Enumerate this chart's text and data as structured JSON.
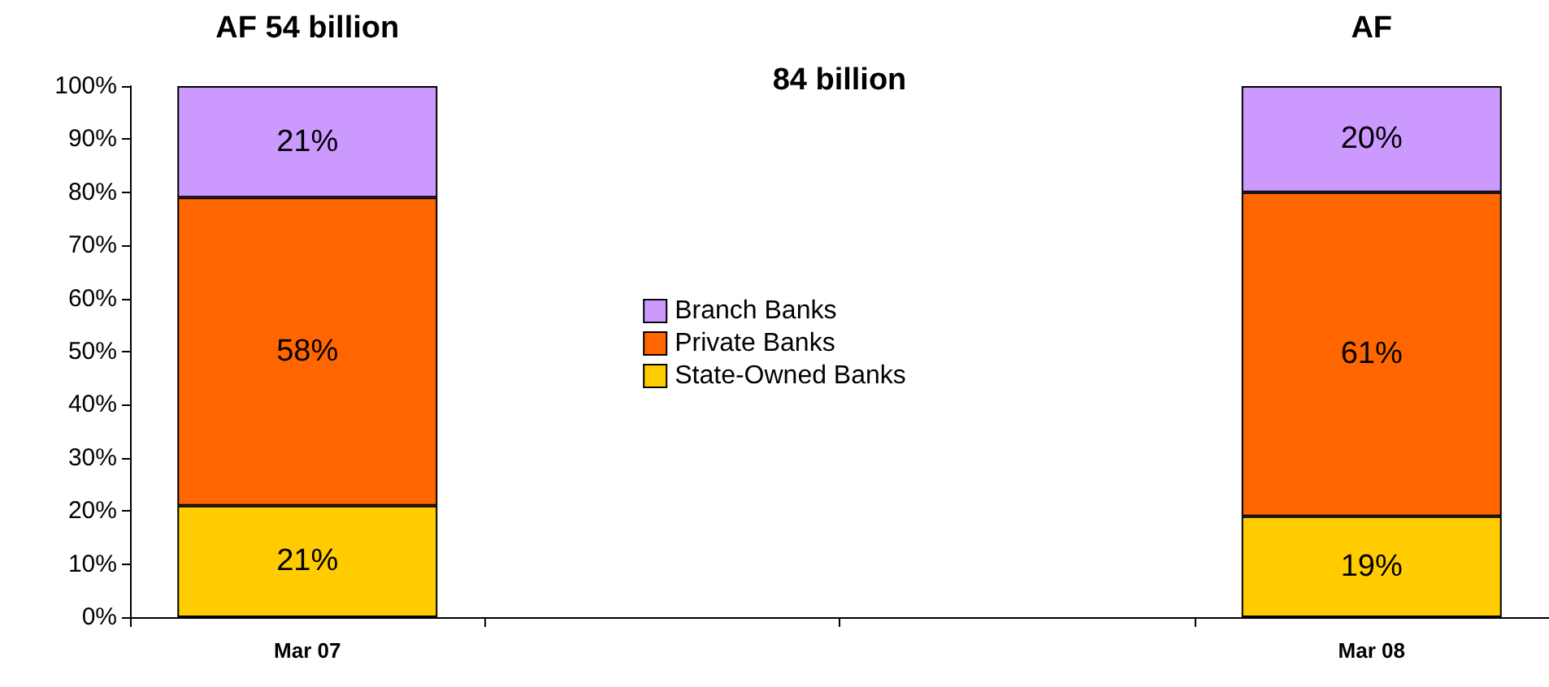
{
  "chart_data": {
    "type": "bar",
    "stacked": true,
    "categories": [
      "Mar 07",
      null,
      null,
      "Mar 08"
    ],
    "series": [
      {
        "name": "State-Owned Banks",
        "color": "#ffcc00",
        "values": [
          21,
          null,
          null,
          19
        ],
        "value_labels": [
          "21%",
          null,
          null,
          "19%"
        ]
      },
      {
        "name": "Private Banks",
        "color": "#ff6600",
        "values": [
          58,
          null,
          null,
          61
        ],
        "value_labels": [
          "58%",
          null,
          null,
          "61%"
        ]
      },
      {
        "name": "Branch Banks",
        "color": "#cc99ff",
        "values": [
          21,
          null,
          null,
          20
        ],
        "value_labels": [
          "21%",
          null,
          null,
          "20%"
        ]
      }
    ],
    "ylim": [
      0,
      100
    ],
    "yticks": [
      {
        "value": 0,
        "label": "0%"
      },
      {
        "value": 10,
        "label": "10%"
      },
      {
        "value": 20,
        "label": "20%"
      },
      {
        "value": 30,
        "label": "30%"
      },
      {
        "value": 40,
        "label": "40%"
      },
      {
        "value": 50,
        "label": "50%"
      },
      {
        "value": 60,
        "label": "60%"
      },
      {
        "value": 70,
        "label": "70%"
      },
      {
        "value": 80,
        "label": "80%"
      },
      {
        "value": 90,
        "label": "90%"
      },
      {
        "value": 100,
        "label": "100%"
      }
    ],
    "grid": false,
    "legend": "center",
    "annotations": [
      "AF 54 billion",
      "84 billion",
      "AF"
    ]
  }
}
